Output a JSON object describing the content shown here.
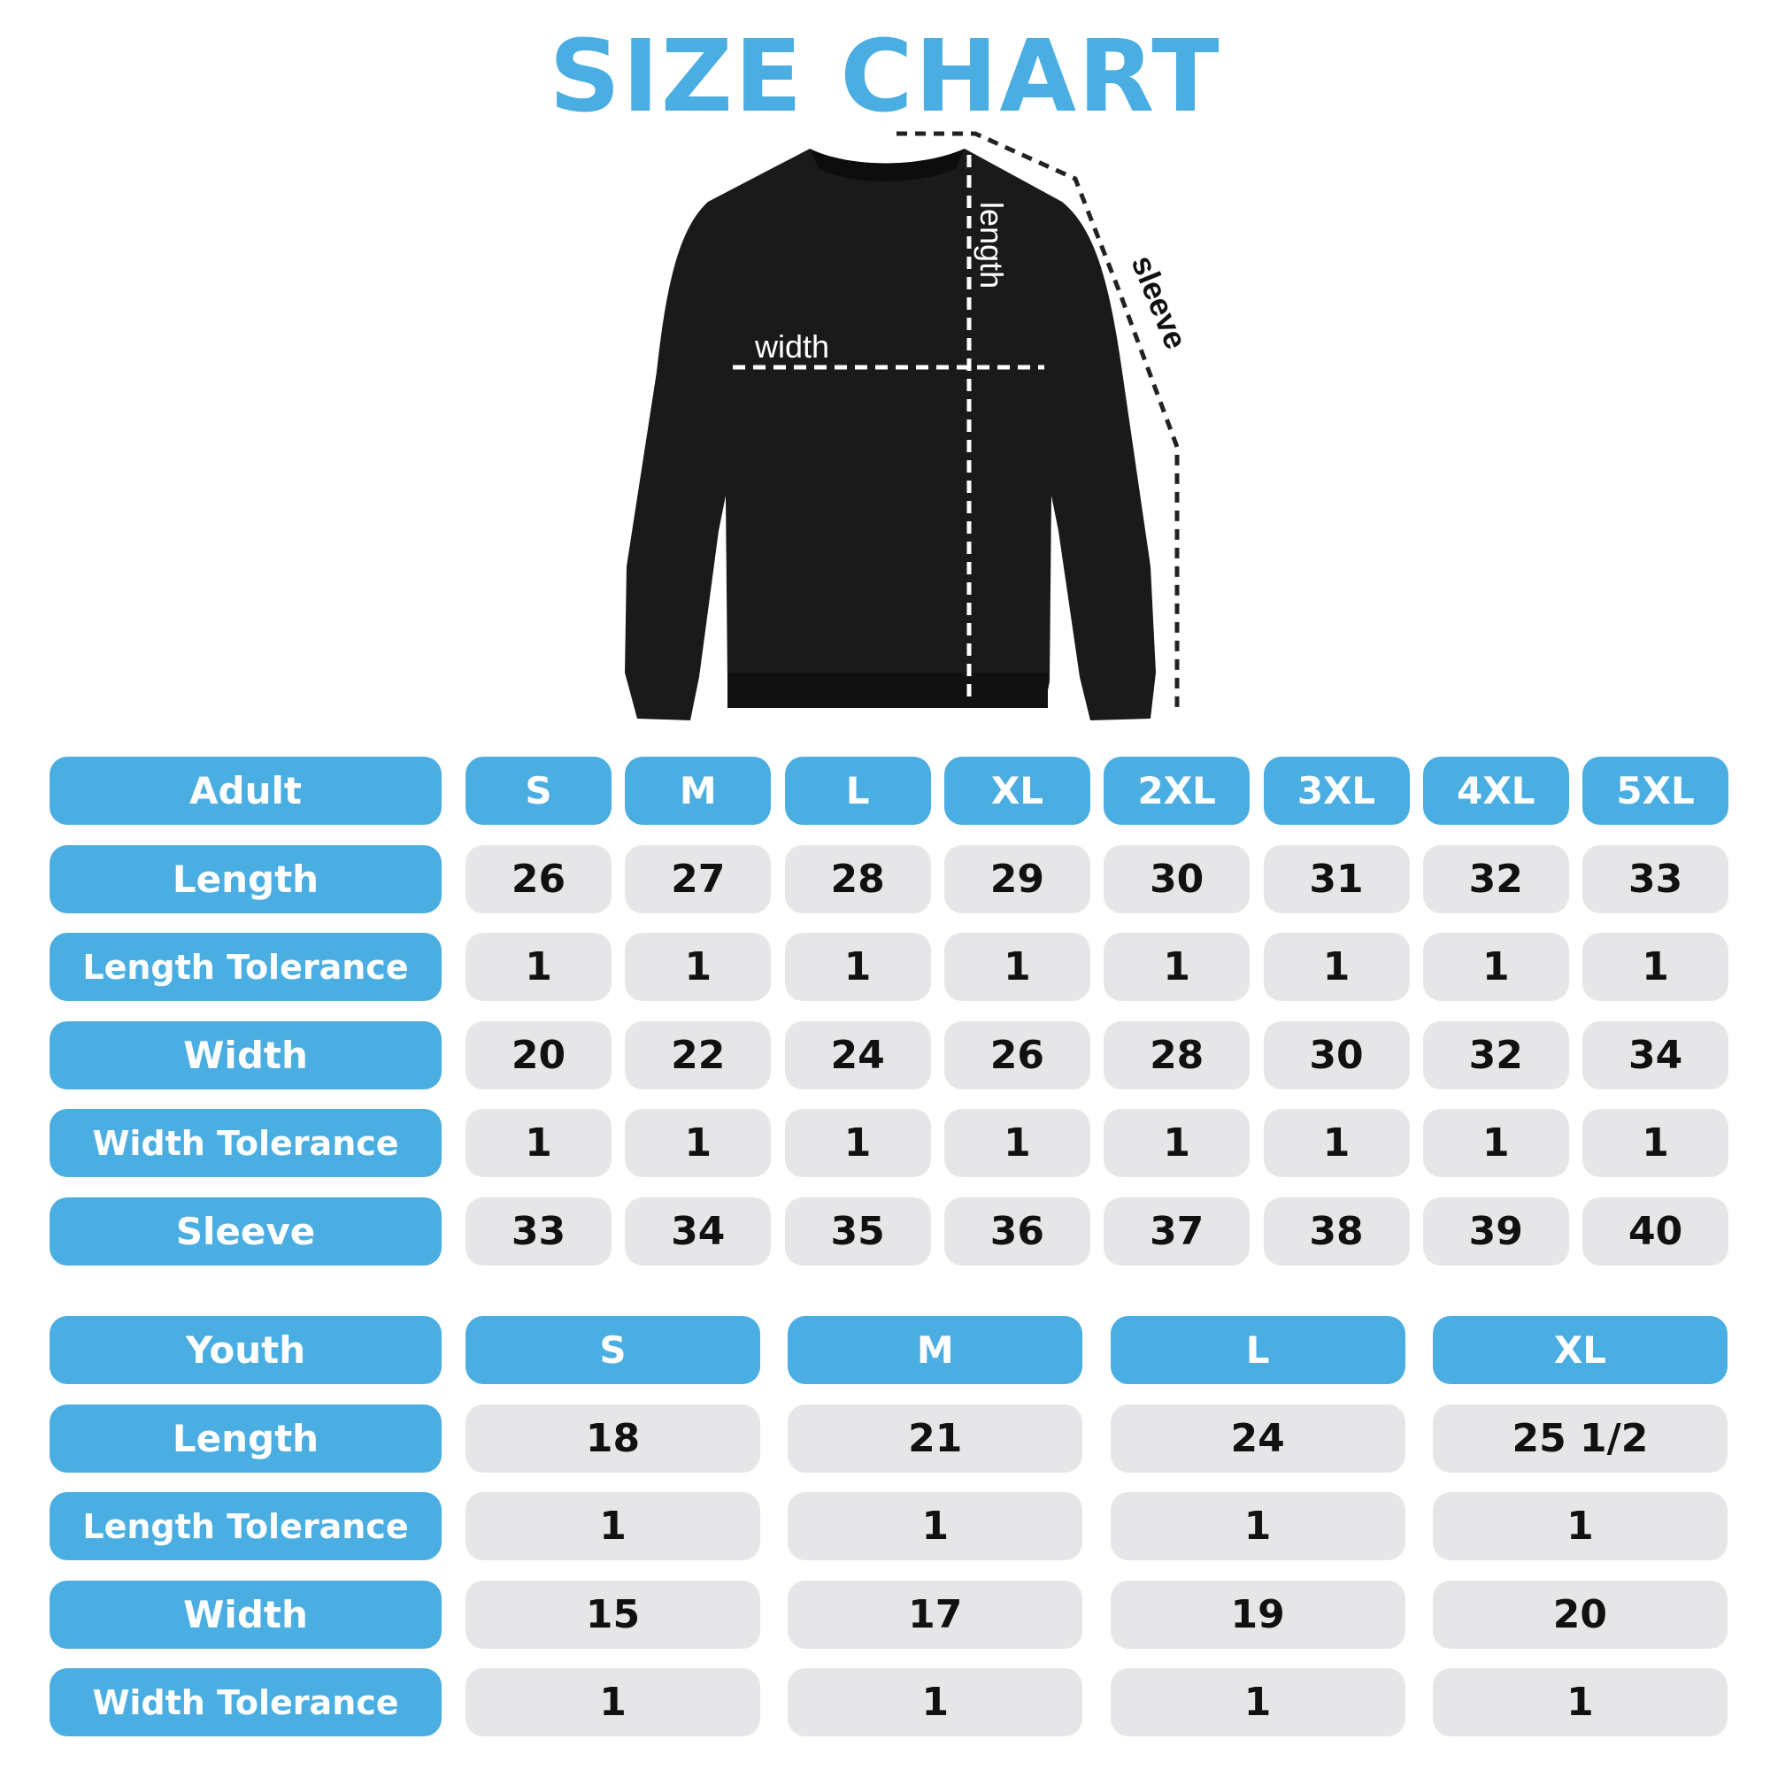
{
  "title": "SIZE CHART",
  "diagram_labels": {
    "width": "width",
    "length": "length",
    "sleeve": "sleeve"
  },
  "colors": {
    "accent": "#4aaee2",
    "cell": "#e6e6e8",
    "garment": "#1a1a1a"
  },
  "adult": {
    "header": "Adult",
    "sizes": [
      "S",
      "M",
      "L",
      "XL",
      "2XL",
      "3XL",
      "4XL",
      "5XL"
    ],
    "rows": [
      {
        "label": "Length",
        "values": [
          "26",
          "27",
          "28",
          "29",
          "30",
          "31",
          "32",
          "33"
        ]
      },
      {
        "label": "Length Tolerance",
        "values": [
          "1",
          "1",
          "1",
          "1",
          "1",
          "1",
          "1",
          "1"
        ]
      },
      {
        "label": "Width",
        "values": [
          "20",
          "22",
          "24",
          "26",
          "28",
          "30",
          "32",
          "34"
        ]
      },
      {
        "label": "Width Tolerance",
        "values": [
          "1",
          "1",
          "1",
          "1",
          "1",
          "1",
          "1",
          "1"
        ]
      },
      {
        "label": "Sleeve",
        "values": [
          "33",
          "34",
          "35",
          "36",
          "37",
          "38",
          "39",
          "40"
        ]
      }
    ]
  },
  "youth": {
    "header": "Youth",
    "sizes": [
      "S",
      "M",
      "L",
      "XL"
    ],
    "rows": [
      {
        "label": "Length",
        "values": [
          "18",
          "21",
          "24",
          "25 1/2"
        ]
      },
      {
        "label": "Length Tolerance",
        "values": [
          "1",
          "1",
          "1",
          "1"
        ]
      },
      {
        "label": "Width",
        "values": [
          "15",
          "17",
          "19",
          "20"
        ]
      },
      {
        "label": "Width Tolerance",
        "values": [
          "1",
          "1",
          "1",
          "1"
        ]
      }
    ]
  }
}
